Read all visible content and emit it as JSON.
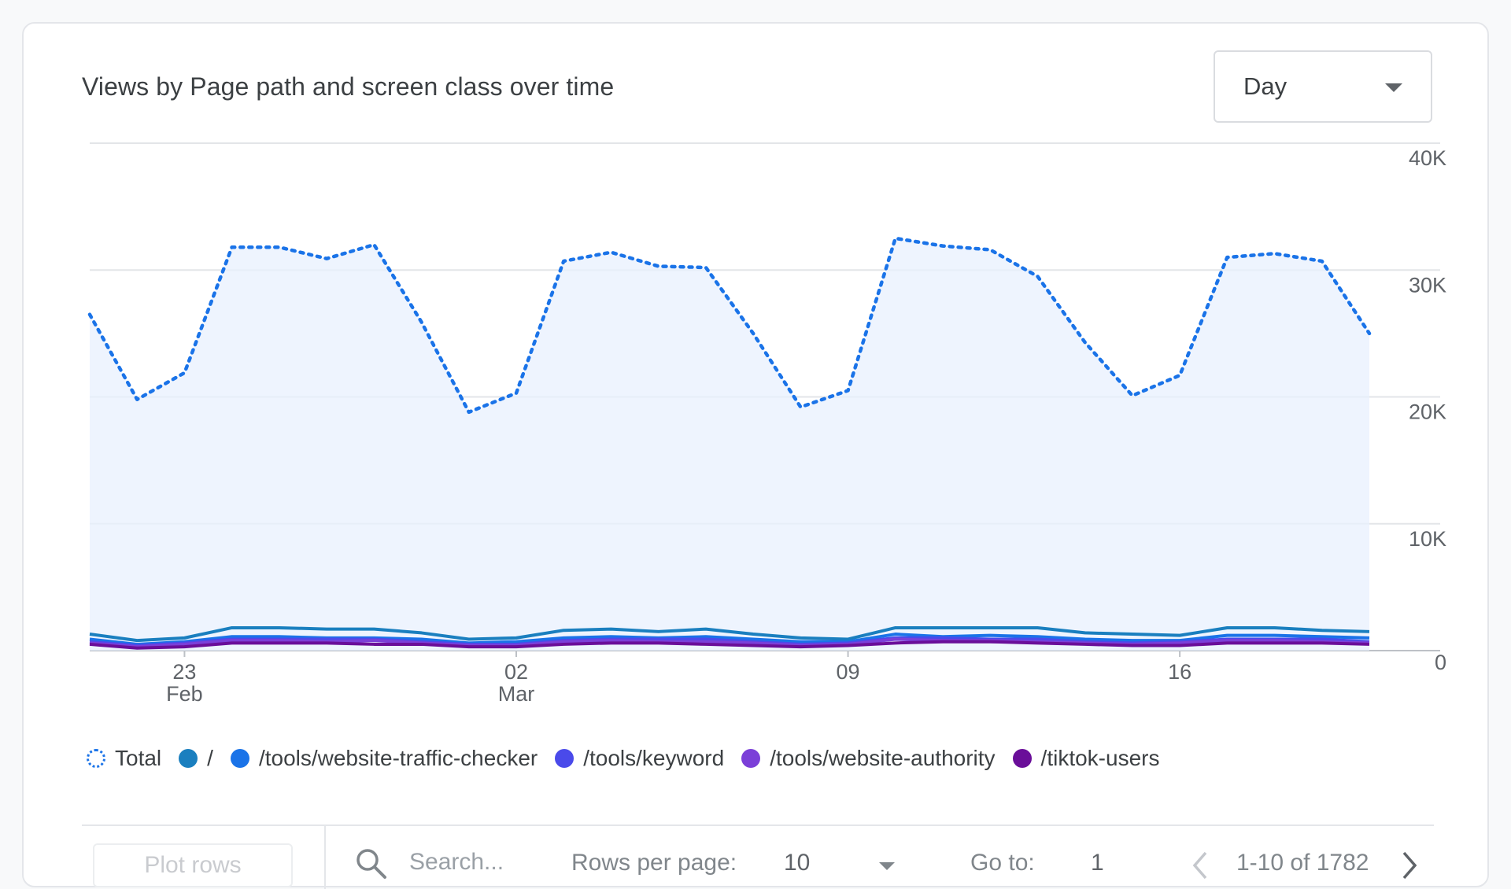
{
  "card": {
    "title": "Views by Page path and screen class over time",
    "period_select": {
      "value": "Day"
    }
  },
  "chart_data": {
    "type": "line",
    "title": "Views by Page path and screen class over time",
    "xlabel": "",
    "ylabel": "",
    "ylim": [
      0,
      40000
    ],
    "y_ticks": [
      "0",
      "10K",
      "20K",
      "30K",
      "40K"
    ],
    "y_axis_position": "right",
    "x_ticks": [
      {
        "day": "23",
        "month": "Feb"
      },
      {
        "day": "02",
        "month": "Mar"
      },
      {
        "day": "09",
        "month": ""
      },
      {
        "day": "16",
        "month": ""
      }
    ],
    "x": [
      "Feb 22",
      "Feb 23",
      "Feb 24",
      "Feb 25",
      "Feb 26",
      "Feb 27",
      "Feb 28",
      "Feb 29",
      "Mar 01",
      "Mar 02",
      "Mar 03",
      "Mar 04",
      "Mar 05",
      "Mar 06",
      "Mar 07",
      "Mar 08",
      "Mar 09",
      "Mar 10",
      "Mar 11",
      "Mar 12",
      "Mar 13",
      "Mar 14",
      "Mar 15",
      "Mar 16",
      "Mar 17",
      "Mar 18",
      "Mar 19",
      "Mar 20"
    ],
    "grid": true,
    "legend_position": "bottom",
    "series": [
      {
        "name": "Total",
        "style": "dotted-area",
        "color": "#1a73e8",
        "values": [
          26500,
          19800,
          21900,
          31800,
          31800,
          30900,
          32000,
          25900,
          18800,
          20300,
          30700,
          31400,
          30300,
          30200,
          25000,
          19200,
          20500,
          32500,
          31900,
          31600,
          29500,
          24300,
          20100,
          21700,
          31000,
          31300,
          30700,
          25000
        ]
      },
      {
        "name": "/",
        "color": "#1a7fbf",
        "values": [
          1300,
          800,
          1000,
          1800,
          1800,
          1700,
          1700,
          1400,
          900,
          1000,
          1600,
          1700,
          1500,
          1700,
          1300,
          1000,
          900,
          1800,
          1800,
          1800,
          1800,
          1400,
          1300,
          1200,
          1800,
          1800,
          1600,
          1500
        ]
      },
      {
        "name": "/tools/website-traffic-checker",
        "color": "#1a73e8",
        "values": [
          900,
          500,
          700,
          1100,
          1100,
          1000,
          1000,
          900,
          600,
          700,
          1000,
          1100,
          1000,
          1100,
          900,
          700,
          700,
          1300,
          1100,
          1200,
          1100,
          900,
          800,
          800,
          1200,
          1200,
          1100,
          1000
        ]
      },
      {
        "name": "/tools/keyword",
        "color": "#4a4aea",
        "values": [
          700,
          400,
          600,
          900,
          900,
          900,
          900,
          700,
          500,
          500,
          800,
          900,
          900,
          900,
          700,
          500,
          600,
          1000,
          1000,
          900,
          900,
          700,
          600,
          700,
          900,
          900,
          900,
          700
        ]
      },
      {
        "name": "/tools/website-authority",
        "color": "#7b3fd8",
        "values": [
          600,
          300,
          500,
          800,
          800,
          700,
          800,
          600,
          400,
          400,
          700,
          800,
          700,
          700,
          600,
          400,
          500,
          900,
          800,
          800,
          700,
          600,
          500,
          600,
          800,
          800,
          700,
          600
        ]
      },
      {
        "name": "/tiktok-users",
        "color": "#6a0e99",
        "values": [
          500,
          200,
          300,
          600,
          600,
          600,
          500,
          500,
          300,
          300,
          500,
          600,
          600,
          500,
          400,
          300,
          400,
          600,
          700,
          700,
          600,
          500,
          400,
          400,
          600,
          600,
          600,
          500
        ]
      }
    ]
  },
  "footer": {
    "plot_rows_label": "Plot rows",
    "search_placeholder": "Search...",
    "rows_per_page_label": "Rows per page:",
    "rows_per_page_value": "10",
    "go_to_label": "Go to:",
    "go_to_value": "1",
    "range_text": "1-10 of 1782"
  },
  "icons": {
    "search": "search-icon",
    "dropdown": "chevron-down-icon",
    "prev": "chevron-left-icon",
    "next": "chevron-right-icon"
  }
}
